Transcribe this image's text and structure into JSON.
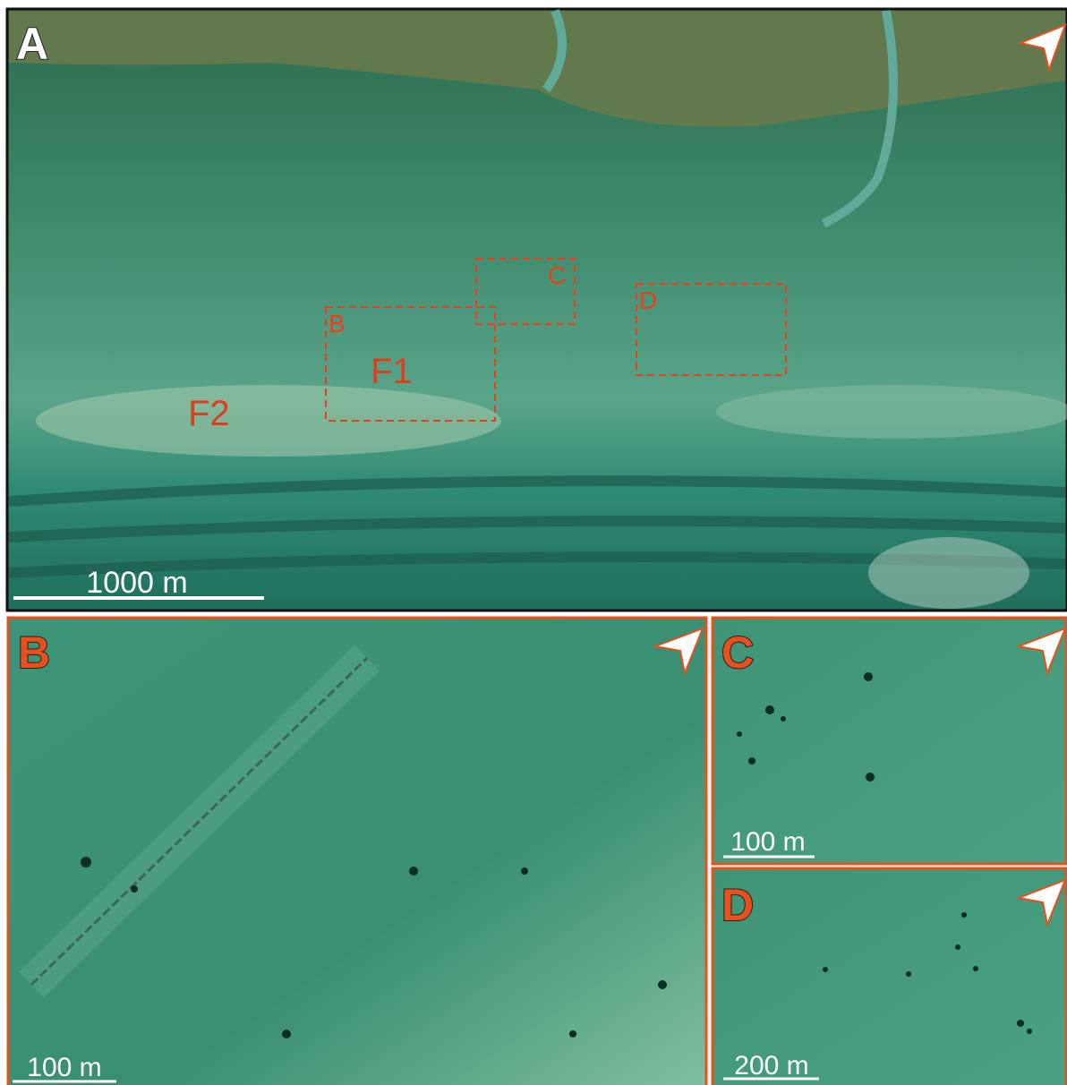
{
  "panels": [
    {
      "label": "A",
      "scale_bar": "1000 m",
      "boxes": [
        {
          "label": "C"
        },
        {
          "label": "D"
        },
        {
          "label": "B"
        }
      ],
      "features": [
        "F1",
        "F2"
      ]
    },
    {
      "label": "B",
      "scale_bar": "100 m"
    },
    {
      "label": "C",
      "scale_bar": "100 m"
    },
    {
      "label": "D",
      "scale_bar": "200 m"
    }
  ]
}
